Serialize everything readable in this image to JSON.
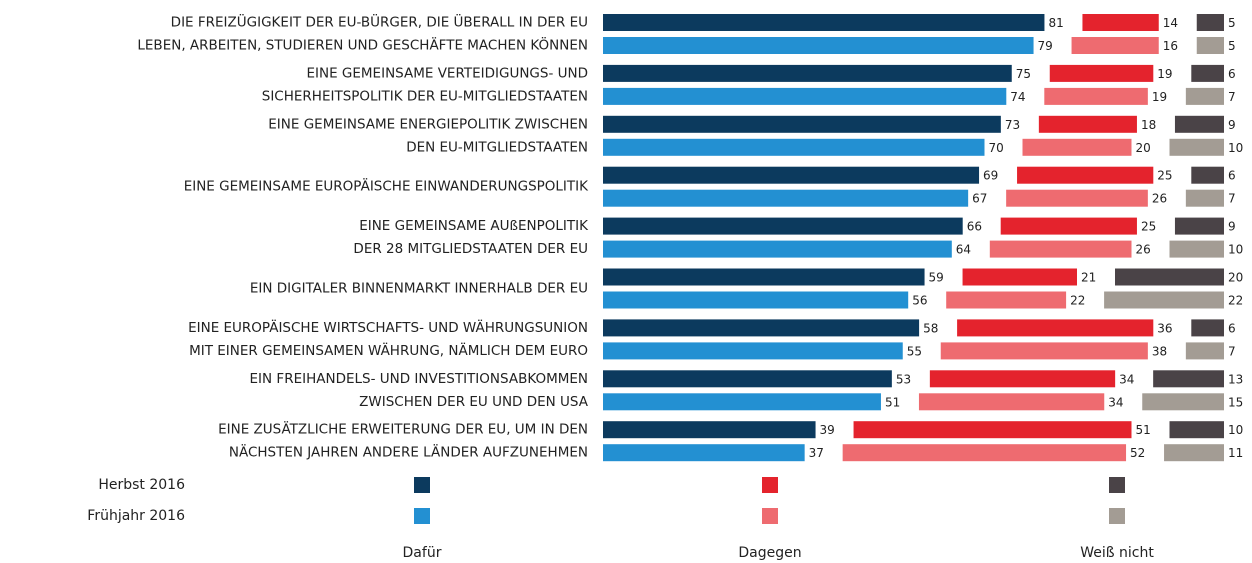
{
  "chart_data": {
    "type": "bar",
    "categories": [
      [
        "DIE FREIZÜGIGKEIT DER EU-BÜRGER, DIE ÜBERALL IN DER EU",
        "LEBEN, ARBEITEN, STUDIEREN UND GESCHÄFTE MACHEN KÖNNEN"
      ],
      [
        "EINE GEMEINSAME VERTEIDIGUNGS- UND",
        "SICHERHEITSPOLITIK DER EU-MITGLIEDSTAATEN"
      ],
      [
        "EINE GEMEINSAME ENERGIEPOLITIK ZWISCHEN",
        "DEN EU-MITGLIEDSTAATEN"
      ],
      [
        "EINE GEMEINSAME EUROPÄISCHE EINWANDERUNGSPOLITIK"
      ],
      [
        "EINE GEMEINSAME AUßENPOLITIK",
        "DER 28 MITGLIEDSTAATEN DER EU"
      ],
      [
        "EIN DIGITALER BINNENMARKT INNERHALB DER EU"
      ],
      [
        "EINE EUROPÄISCHE WIRTSCHAFTS- UND WÄHRUNGSUNION",
        "MIT EINER GEMEINSAMEN WÄHRUNG, NÄMLICH DEM EURO"
      ],
      [
        "EIN FREIHANDELS- UND INVESTITIONSABKOMMEN",
        "ZWISCHEN DER EU UND DEN USA"
      ],
      [
        "EINE ZUSÄTZLICHE ERWEITERUNG DER EU, UM IN DEN",
        "NÄCHSTEN JAHREN ANDERE LÄNDER AUFZUNEHMEN"
      ]
    ],
    "periods": [
      "Herbst 2016",
      "Frühjahr 2016"
    ],
    "series": [
      {
        "name": "Dafür",
        "colors": [
          "#0c3a5e",
          "#2390d2"
        ],
        "values": [
          [
            81,
            79
          ],
          [
            75,
            74
          ],
          [
            73,
            70
          ],
          [
            69,
            67
          ],
          [
            66,
            64
          ],
          [
            59,
            56
          ],
          [
            58,
            55
          ],
          [
            53,
            51
          ],
          [
            39,
            37
          ]
        ]
      },
      {
        "name": "Dagegen",
        "colors": [
          "#e4232d",
          "#ee6b70"
        ],
        "values": [
          [
            14,
            16
          ],
          [
            19,
            19
          ],
          [
            18,
            20
          ],
          [
            25,
            26
          ],
          [
            25,
            26
          ],
          [
            21,
            22
          ],
          [
            36,
            38
          ],
          [
            34,
            34
          ],
          [
            51,
            52
          ]
        ]
      },
      {
        "name": "Weiß nicht",
        "colors": [
          "#4a4347",
          "#a39c94"
        ],
        "values": [
          [
            5,
            5
          ],
          [
            6,
            7
          ],
          [
            9,
            10
          ],
          [
            6,
            7
          ],
          [
            9,
            10
          ],
          [
            20,
            22
          ],
          [
            6,
            7
          ],
          [
            13,
            15
          ],
          [
            10,
            11
          ]
        ]
      }
    ]
  }
}
